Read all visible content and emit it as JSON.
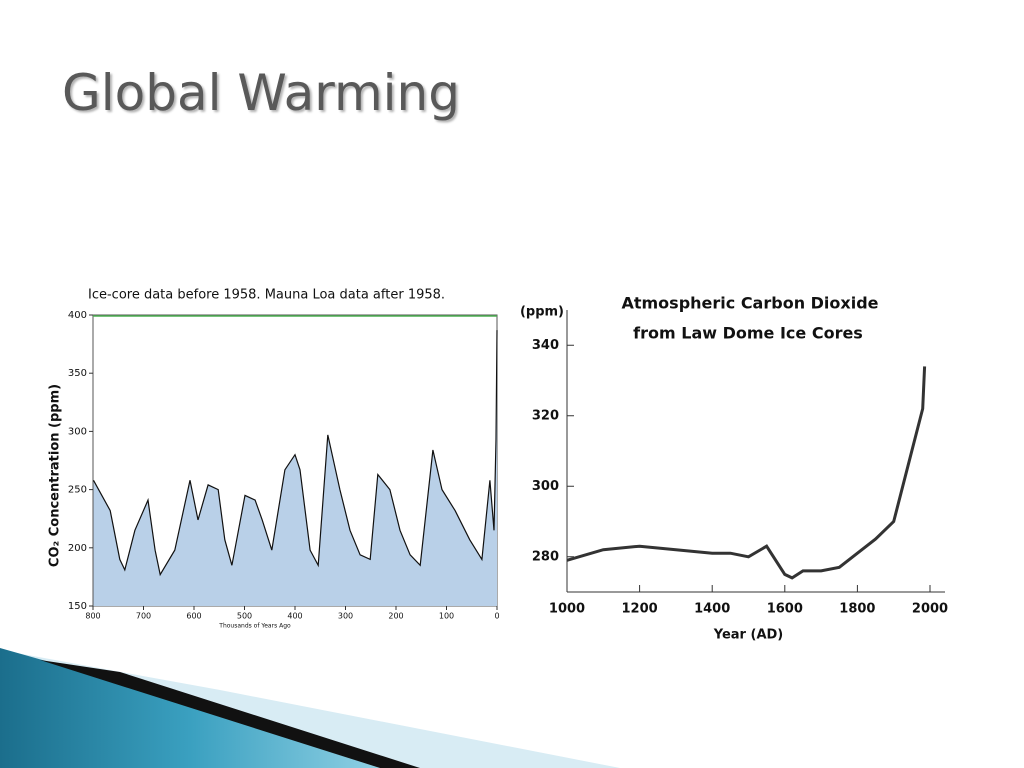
{
  "title": "Global Warming",
  "chart_data": [
    {
      "type": "area",
      "title": "Ice-core data before 1958. Mauna Loa data after 1958.",
      "x_label": "Thousands of Years Ago",
      "y_label": "CO₂ Concentration (ppm)",
      "x": [
        799,
        766,
        747,
        737,
        717,
        691,
        677,
        667,
        638,
        608,
        592,
        572,
        552,
        539,
        525,
        499,
        479,
        465,
        446,
        420,
        400,
        390,
        370,
        354,
        335,
        311,
        291,
        271,
        251,
        236,
        212,
        192,
        172,
        152,
        127,
        109,
        83,
        54,
        30,
        14,
        6,
        2,
        0
      ],
      "values": [
        258,
        232,
        190,
        181,
        215,
        241,
        198,
        177,
        198,
        258,
        224,
        254,
        250,
        207,
        185,
        245,
        241,
        224,
        198,
        267,
        280,
        267,
        198,
        185,
        297,
        250,
        215,
        194,
        190,
        263,
        250,
        215,
        194,
        185,
        284,
        250,
        232,
        207,
        190,
        258,
        215,
        293,
        387
      ],
      "color": "#b9d0e8",
      "line_color": "#111111",
      "xlim": [
        800,
        0
      ],
      "xticks": [
        800,
        700,
        600,
        500,
        400,
        300,
        200,
        100,
        0
      ],
      "ylim": [
        150,
        400
      ],
      "yticks": [
        150,
        200,
        250,
        300,
        350,
        400
      ]
    },
    {
      "type": "line",
      "title": "Atmospheric Carbon Dioxide",
      "subtitle": "from Law Dome Ice Cores",
      "x_label": "Year (AD)",
      "y_label": "(ppm)",
      "x": [
        1000,
        1100,
        1200,
        1300,
        1400,
        1450,
        1500,
        1550,
        1600,
        1620,
        1650,
        1700,
        1750,
        1800,
        1850,
        1900,
        1950,
        1980,
        1985
      ],
      "values": [
        279,
        282,
        283,
        282,
        281,
        281,
        280,
        283,
        275,
        274,
        276,
        276,
        277,
        281,
        285,
        290,
        310,
        322,
        334
      ],
      "color": "#333333",
      "xlim": [
        1000,
        2000
      ],
      "xticks": [
        1000,
        1200,
        1400,
        1600,
        1800,
        2000
      ],
      "ylim": [
        270,
        350
      ],
      "yticks": [
        280,
        300,
        320,
        340
      ]
    }
  ]
}
